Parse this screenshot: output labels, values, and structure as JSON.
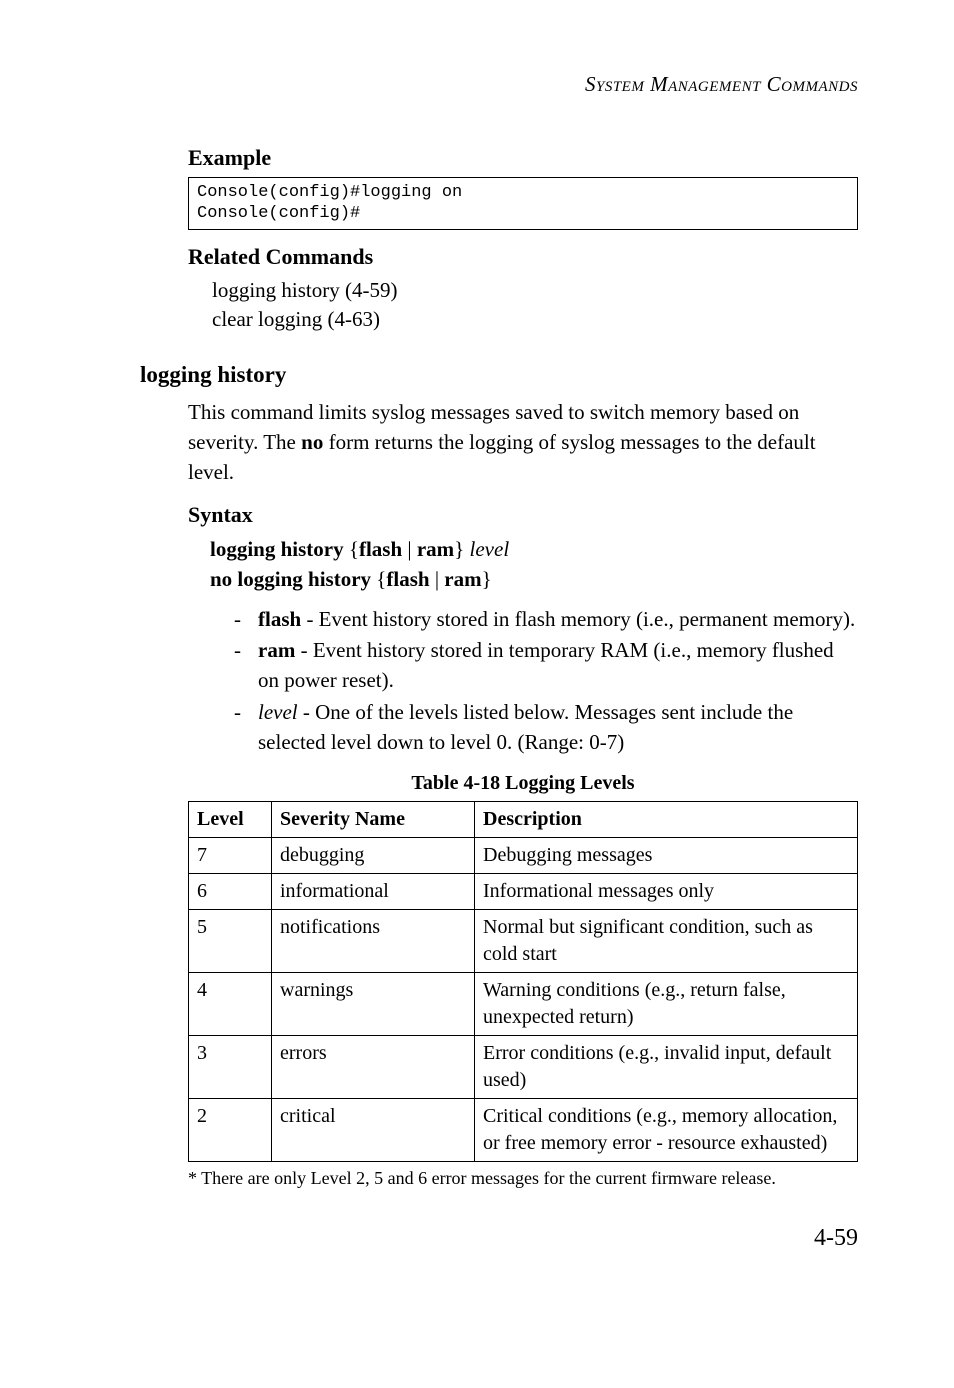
{
  "runningHead": "System Management Commands",
  "example": {
    "heading": "Example",
    "code": "Console(config)#logging on\nConsole(config)#"
  },
  "related": {
    "heading": "Related Commands",
    "items": [
      "logging history (4-59)",
      "clear logging (4-63)"
    ]
  },
  "section": {
    "title": "logging history",
    "desc_parts": {
      "p1": "This command limits syslog messages saved to switch memory based on severity. The ",
      "no": "no",
      "p2": " form returns the logging of syslog messages to the default level."
    }
  },
  "syntax": {
    "heading": "Syntax",
    "line1_parts": {
      "a": "logging history",
      "b": " {",
      "c": "flash",
      "d": " | ",
      "e": "ram",
      "f": "} ",
      "g": "level"
    },
    "line2_parts": {
      "a": "no logging history",
      "b": " {",
      "c": "flash",
      "d": " | ",
      "e": "ram",
      "f": "}"
    },
    "bullets": [
      {
        "lead_bold": "flash",
        "rest": " - Event history stored in flash memory (i.e., permanent memory)."
      },
      {
        "lead_bold": "ram",
        "rest": " - Event history stored in temporary RAM (i.e., memory flushed on power reset)."
      },
      {
        "lead_italic": "level",
        "rest": " - One of the levels listed below. Messages sent include the selected level down to level 0. (Range: 0-7)"
      }
    ]
  },
  "table": {
    "caption": "Table 4-18  Logging Levels",
    "headers": [
      "Level",
      "Severity Name",
      "Description"
    ],
    "rows": [
      [
        "7",
        "debugging",
        "Debugging messages"
      ],
      [
        "6",
        "informational",
        "Informational messages only"
      ],
      [
        "5",
        "notifications",
        "Normal but significant condition, such as cold start"
      ],
      [
        "4",
        "warnings",
        "Warning conditions (e.g., return false, unexpected return)"
      ],
      [
        "3",
        "errors",
        "Error conditions (e.g., invalid input, default used)"
      ],
      [
        "2",
        "critical",
        "Critical conditions (e.g., memory allocation, or free memory error - resource exhausted)"
      ]
    ],
    "footnote": "* There are only Level 2, 5 and 6 error messages for the current firmware release."
  },
  "pageNumber": "4-59"
}
